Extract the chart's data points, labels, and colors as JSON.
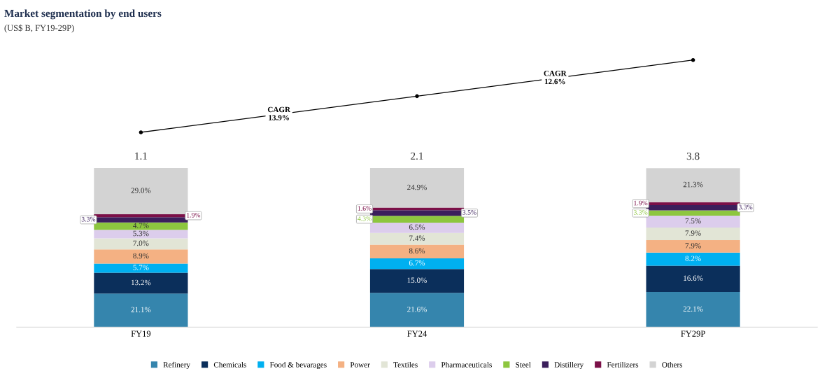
{
  "chart_data": {
    "type": "bar",
    "title": "Market segmentation by end users",
    "subtitle": "(US$ B, FY19-29P)",
    "categories": [
      "FY19",
      "FY24",
      "FY29P"
    ],
    "stacked": true,
    "tick_labels": "x",
    "legend": "bottom",
    "annotations": [
      {
        "text": "1.1",
        "x": "FY19",
        "y": 100.1
      },
      {
        "text": "2.1",
        "x": "FY24",
        "y": 100.1
      },
      {
        "text": "3.8",
        "x": "FY29P",
        "y": 100
      },
      "CAGR\n13.9%",
      "CAGR\n12.6%"
    ],
    "series": [
      {
        "name": "Refinery",
        "color": "#3585ad",
        "values": [
          21.1,
          21.6,
          22.1
        ],
        "value_labels": [
          "21.1%",
          "21.6%",
          "22.1%"
        ]
      },
      {
        "name": "Chemicals",
        "color": "#0b2f5b",
        "values": [
          13.2,
          15.0,
          16.6
        ],
        "value_labels": [
          "13.2%",
          "15.0%",
          "16.6%"
        ]
      },
      {
        "name": "Food & bevarages",
        "color": "#00b0f0",
        "values": [
          5.7,
          6.7,
          8.2
        ],
        "value_labels": [
          "5.7%",
          "6.7%",
          "8.2%"
        ]
      },
      {
        "name": "Power",
        "color": "#f4b183",
        "values": [
          8.9,
          8.6,
          7.9
        ],
        "value_labels": [
          "8.9%",
          "8.6%",
          "7.9%"
        ]
      },
      {
        "name": "Textiles",
        "color": "#e2e5d6",
        "values": [
          7.0,
          7.4,
          7.9
        ],
        "value_labels": [
          "7.0%",
          "7.4%",
          "7.9%"
        ]
      },
      {
        "name": "Pharmaceuticals",
        "color": "#dccdec",
        "values": [
          5.3,
          6.5,
          7.5
        ],
        "value_labels": [
          "5.3%",
          "6.5%",
          "7.5%"
        ]
      },
      {
        "name": "Steel",
        "color": "#8dc63f",
        "values": [
          4.7,
          4.3,
          3.3
        ],
        "value_labels": [
          "4.7%",
          "4.3%",
          "3.3%"
        ]
      },
      {
        "name": "Distillery",
        "color": "#3b1f5c",
        "values": [
          3.3,
          3.5,
          3.3
        ],
        "value_labels": [
          "3.3%",
          "3.5%",
          "3.3%"
        ]
      },
      {
        "name": "Fertilizers",
        "color": "#7b1048",
        "values": [
          1.9,
          1.6,
          1.9
        ],
        "value_labels": [
          "1.9%",
          "1.6%",
          "1.9%"
        ]
      },
      {
        "name": "Others",
        "color": "#d3d3d3",
        "values": [
          29.0,
          24.9,
          21.3
        ],
        "value_labels": [
          "29.0%",
          "24.9%",
          "21.3%"
        ]
      }
    ]
  }
}
